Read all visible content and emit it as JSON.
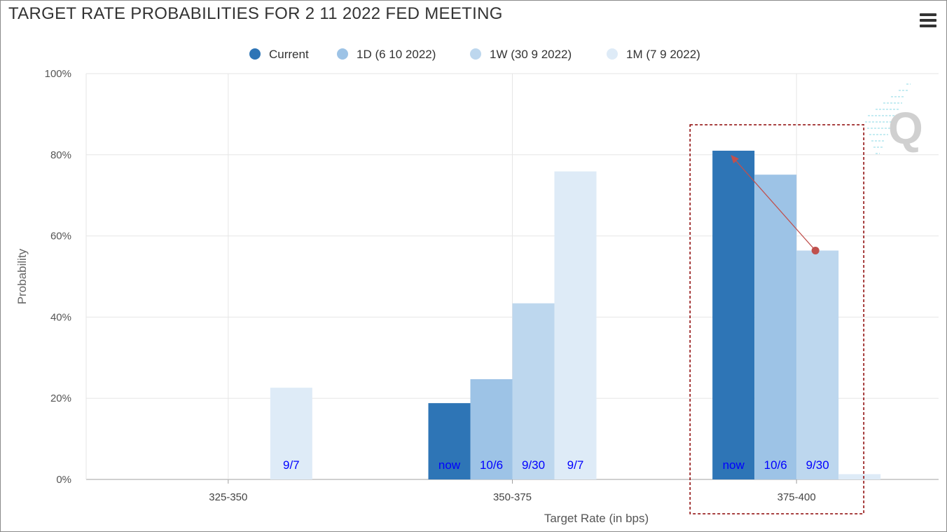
{
  "title": "TARGET RATE PROBABILITIES FOR 2 11 2022 FED MEETING",
  "menu_icon": "hamburger-menu-icon",
  "watermark_icon": "quikstrike-q-logo-icon",
  "chart_data": {
    "type": "bar",
    "title": "TARGET RATE PROBABILITIES FOR 2 11 2022 FED MEETING",
    "xlabel": "Target Rate (in bps)",
    "ylabel": "Probability",
    "ylim": [
      0,
      100
    ],
    "yticks": [
      "0%",
      "20%",
      "40%",
      "60%",
      "80%",
      "100%"
    ],
    "categories": [
      "325-350",
      "350-375",
      "375-400"
    ],
    "series": [
      {
        "name": "Current",
        "values": [
          0,
          18.8,
          81.0
        ],
        "color": "#2E75B6"
      },
      {
        "name": "1D (6 10 2022)",
        "values": [
          0,
          24.7,
          75.1
        ],
        "color": "#9DC3E6"
      },
      {
        "name": "1W (30 9 2022)",
        "values": [
          0,
          43.4,
          56.4
        ],
        "color": "#BDD7EE"
      },
      {
        "name": "1M (7 9 2022)",
        "values": [
          22.6,
          75.9,
          1.3
        ],
        "color": "#DEEBF7"
      }
    ],
    "legend_position": "top",
    "grid": true,
    "annotations": [
      {
        "category": "325-350",
        "series": 3,
        "text": "9/7"
      },
      {
        "category": "350-375",
        "series": 0,
        "text": "now"
      },
      {
        "category": "350-375",
        "series": 1,
        "text": "10/6"
      },
      {
        "category": "350-375",
        "series": 2,
        "text": "9/30"
      },
      {
        "category": "350-375",
        "series": 3,
        "text": "9/7"
      },
      {
        "category": "375-400",
        "series": 0,
        "text": "now"
      },
      {
        "category": "375-400",
        "series": 1,
        "text": "10/6"
      },
      {
        "category": "375-400",
        "series": 2,
        "text": "9/30"
      }
    ],
    "annotation_color": "#0000FF",
    "highlight": {
      "category": "375-400",
      "color": "#8B0000"
    },
    "arrow": {
      "category": "375-400",
      "from_series": 2,
      "to_series": 0,
      "color": "#C0504D"
    }
  }
}
